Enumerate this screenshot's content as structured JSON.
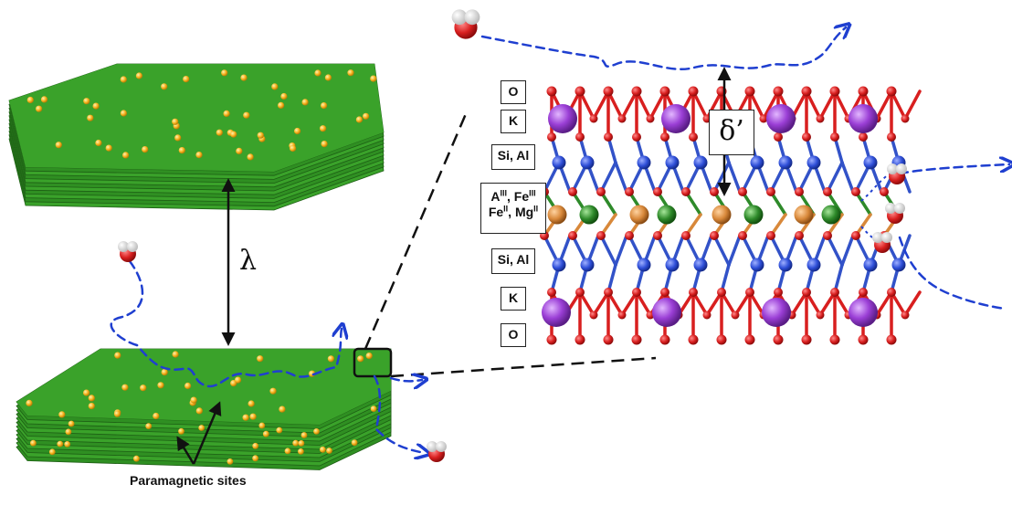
{
  "labels": {
    "lambda": "λ",
    "delta_prime": "δ’",
    "paramagnetic": "Paramagnetic sites",
    "layer_o_top": "O",
    "layer_k_top": "K",
    "layer_si_top": "Si, Al",
    "layer_oct_line1_a": "A",
    "layer_oct_line1_a_sup": "III",
    "layer_oct_line1_b": ", Fe",
    "layer_oct_line1_b_sup": "III",
    "layer_oct_line2_a": "Fe",
    "layer_oct_line2_a_sup": "II",
    "layer_oct_line2_b": ", Mg",
    "layer_oct_line2_b_sup": "II",
    "layer_si_bottom": "Si, Al",
    "layer_k_bottom": "K",
    "layer_o_bottom": "O"
  },
  "colors": {
    "sheet_top": "#3aa22a",
    "sheet_side": "#2a7d1e",
    "sheet_line": "#1d5e14",
    "site_dot": "#f6b21c",
    "oxygen": "#d81f1f",
    "potassium": "#9b3fd6",
    "silicon": "#2f4fd8",
    "oct_orange": "#d8883a",
    "oct_green": "#2e8a2a",
    "water_path": "#1f3fd0",
    "arrow": "#111111"
  },
  "icons": {
    "water_molecule": "water-molecule-icon"
  }
}
